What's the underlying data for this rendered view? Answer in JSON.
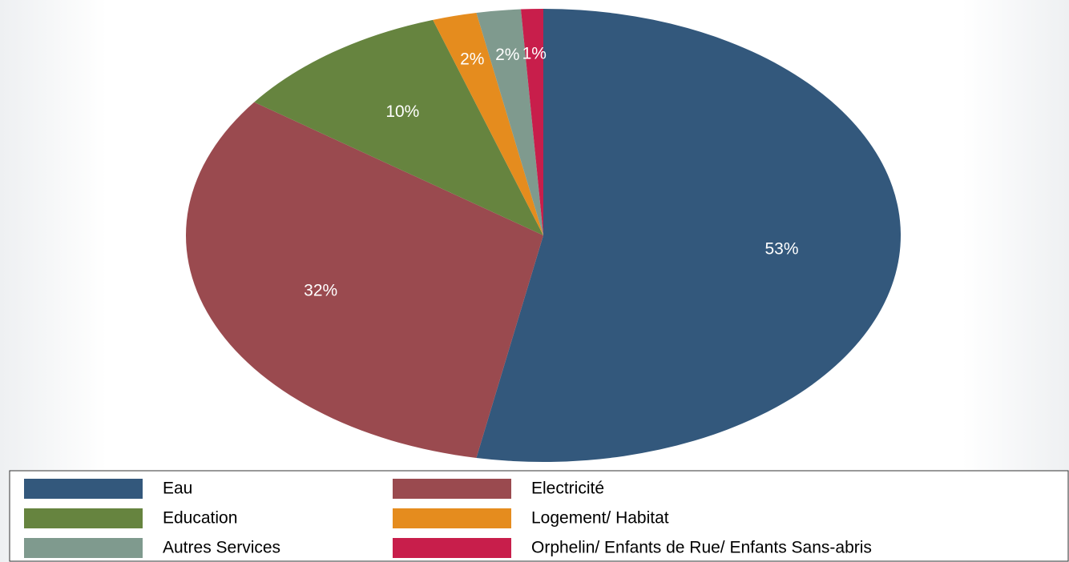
{
  "chart_data": {
    "type": "pie",
    "categories": [
      "Eau",
      "Electricité",
      "Education",
      "Logement/ Habitat",
      "Autres Services",
      "Orphelin/ Enfants de Rue/ Enfants Sans-abris"
    ],
    "values": [
      53,
      32,
      10,
      2,
      2,
      1
    ],
    "value_labels": [
      "53%",
      "32%",
      "10%",
      "2%",
      "2%",
      "1%"
    ],
    "colors": [
      "#33587c",
      "#9a4a4f",
      "#66843f",
      "#e58c1e",
      "#7f9a8e",
      "#c81e4b"
    ]
  }
}
